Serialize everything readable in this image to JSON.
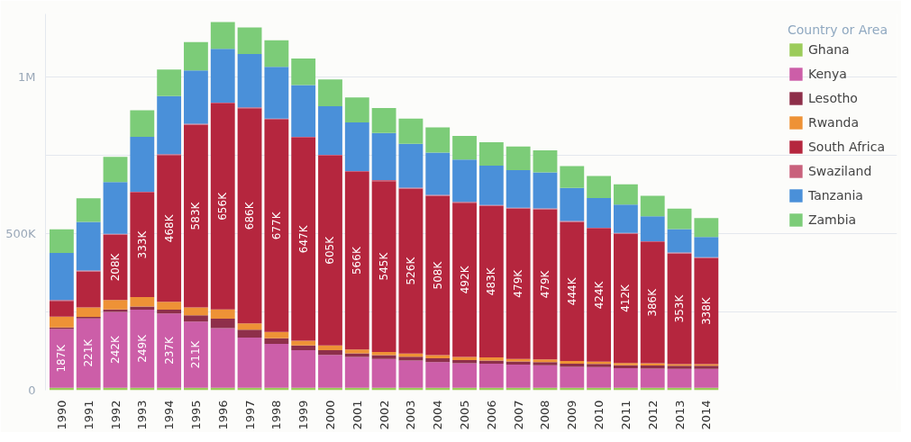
{
  "chart_data": {
    "type": "bar",
    "stacked": true,
    "legend_title": "Country or Area",
    "legend": "right",
    "grid": "y",
    "categories": [
      "1990",
      "1991",
      "1992",
      "1993",
      "1994",
      "1995",
      "1996",
      "1997",
      "1998",
      "1999",
      "2000",
      "2001",
      "2002",
      "2003",
      "2004",
      "2005",
      "2006",
      "2007",
      "2008",
      "2009",
      "2010",
      "2011",
      "2012",
      "2013",
      "2014"
    ],
    "ylim": [
      0,
      1200000
    ],
    "yticks": [
      {
        "value": 0,
        "label": "0"
      },
      {
        "value": 250000,
        "label": null
      },
      {
        "value": 500000,
        "label": "500K"
      },
      {
        "value": 750000,
        "label": null
      },
      {
        "value": 1000000,
        "label": "1M"
      }
    ],
    "series": [
      {
        "name": "Ghana",
        "color": "#9ccc5a",
        "values": [
          8000,
          8000,
          8000,
          8000,
          8000,
          8000,
          8000,
          8000,
          8000,
          8000,
          8000,
          8000,
          8000,
          8000,
          8000,
          8000,
          8000,
          8000,
          8000,
          8000,
          8000,
          8000,
          8000,
          8000,
          8000
        ]
      },
      {
        "name": "Kenya",
        "color": "#cc5ea8",
        "values": [
          187000,
          221000,
          242000,
          249000,
          237000,
          211000,
          190000,
          160000,
          140000,
          120000,
          105000,
          98000,
          92000,
          87000,
          82000,
          78000,
          77000,
          74000,
          72000,
          67000,
          66000,
          62000,
          61000,
          60000,
          60000
        ],
        "value_labels": [
          "187K",
          "221K",
          "242K",
          "249K",
          "237K",
          "211K",
          null,
          null,
          null,
          null,
          null,
          null,
          null,
          null,
          null,
          null,
          null,
          null,
          null,
          null,
          null,
          null,
          null,
          null,
          null
        ]
      },
      {
        "name": "Lesotho",
        "color": "#8e2f4a",
        "values": [
          5000,
          5000,
          8000,
          10000,
          12000,
          20000,
          30000,
          25000,
          18000,
          15000,
          15000,
          12000,
          12000,
          12000,
          12000,
          10000,
          10000,
          10000,
          10000,
          10000,
          10000,
          10000,
          10000,
          10000,
          10000
        ]
      },
      {
        "name": "Rwanda",
        "color": "#ee9236",
        "values": [
          35000,
          30000,
          30000,
          30000,
          25000,
          25000,
          30000,
          20000,
          20000,
          15000,
          15000,
          12000,
          10000,
          10000,
          10000,
          10000,
          10000,
          8000,
          8000,
          8000,
          7000,
          7000,
          7000,
          5000,
          5000
        ]
      },
      {
        "name": "South Africa",
        "color": "#b5263e",
        "values": [
          50000,
          115000,
          208000,
          333000,
          468000,
          583000,
          656000,
          686000,
          677000,
          647000,
          605000,
          566000,
          545000,
          526000,
          508000,
          492000,
          483000,
          479000,
          479000,
          444000,
          424000,
          412000,
          386000,
          353000,
          338000
        ],
        "value_labels": [
          null,
          null,
          "208K",
          "333K",
          "468K",
          "583K",
          "656K",
          "686K",
          "677K",
          "647K",
          "605K",
          "566K",
          "545K",
          "526K",
          "508K",
          "492K",
          "483K",
          "479K",
          "479K",
          "444K",
          "424K",
          "412K",
          "386K",
          "353K",
          "338K"
        ]
      },
      {
        "name": "Swaziland",
        "color": "#c9617c",
        "values": [
          3000,
          3000,
          3000,
          3000,
          3000,
          3000,
          3000,
          3000,
          3000,
          3000,
          3000,
          3000,
          3000,
          3000,
          3000,
          3000,
          3000,
          3000,
          3000,
          3000,
          3000,
          3000,
          3000,
          3000,
          3000
        ]
      },
      {
        "name": "Tanzania",
        "color": "#4a90d9",
        "values": [
          150000,
          155000,
          165000,
          175000,
          185000,
          170000,
          172000,
          170000,
          165000,
          165000,
          155000,
          155000,
          150000,
          140000,
          135000,
          135000,
          125000,
          120000,
          115000,
          105000,
          95000,
          90000,
          80000,
          75000,
          65000
        ]
      },
      {
        "name": "Zambia",
        "color": "#7ccc78",
        "values": [
          75000,
          75000,
          80000,
          85000,
          85000,
          90000,
          85000,
          85000,
          85000,
          85000,
          85000,
          80000,
          80000,
          80000,
          80000,
          75000,
          75000,
          75000,
          70000,
          70000,
          70000,
          65000,
          65000,
          65000,
          60000
        ]
      }
    ]
  }
}
